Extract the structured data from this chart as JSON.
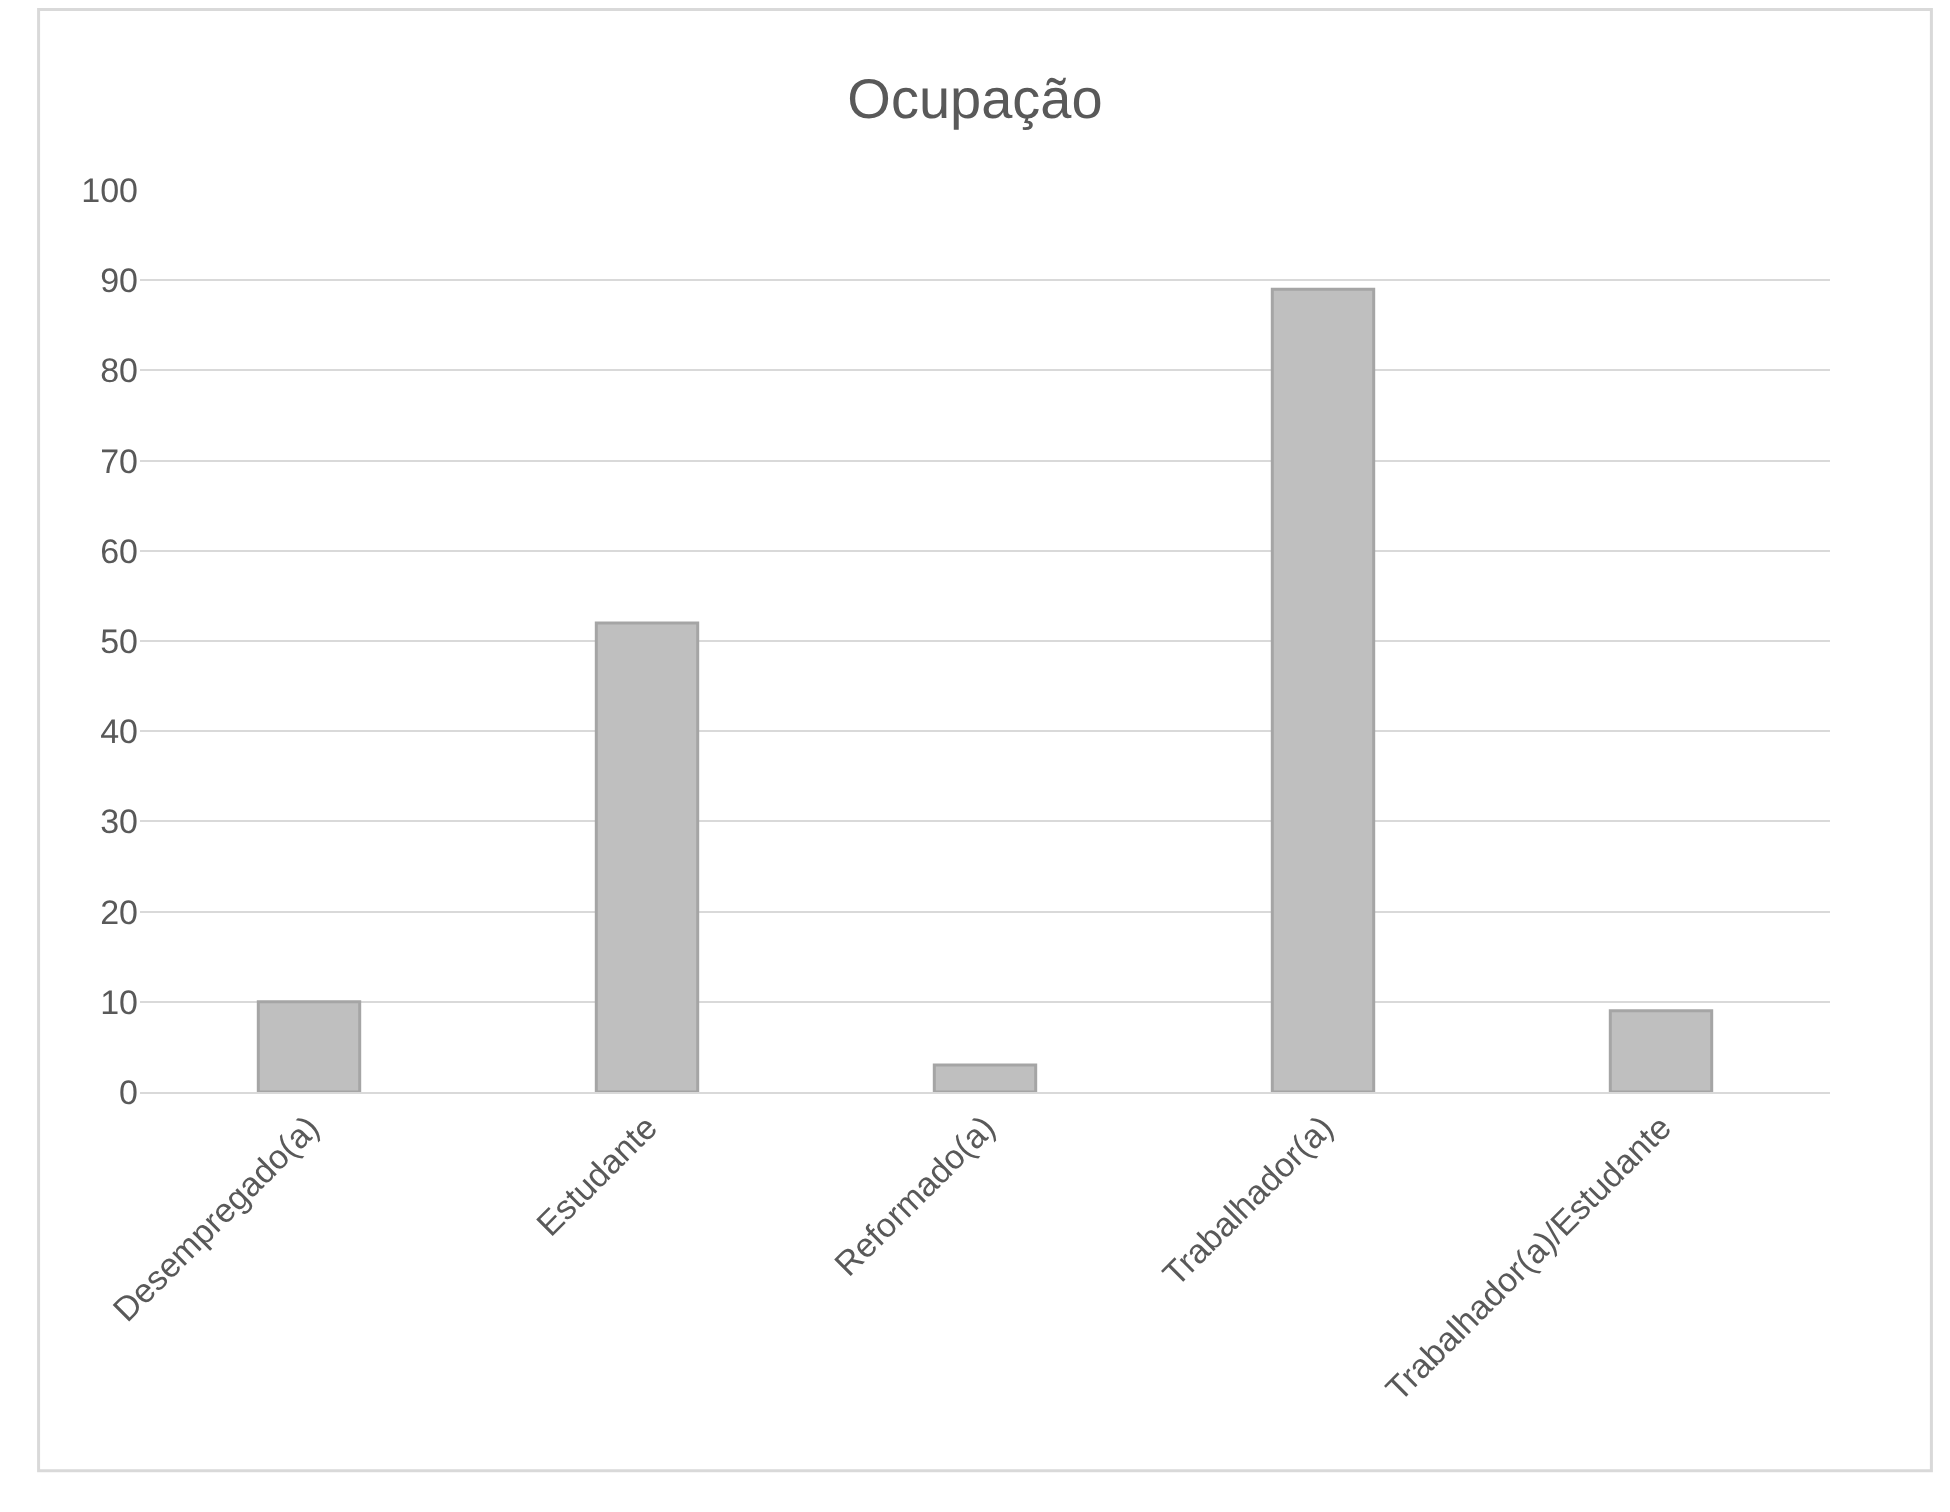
{
  "chart_data": {
    "type": "bar",
    "title": "Ocupação",
    "categories": [
      "Desempregado(a)",
      "Estudante",
      "Reformado(a)",
      "Trabalhador(a)",
      "Trabalhador(a)/Estudante"
    ],
    "values": [
      10,
      52,
      3,
      89,
      9
    ],
    "color": "#bfbfbf",
    "ylim": [
      0,
      100
    ],
    "yticks": [
      0,
      10,
      20,
      30,
      40,
      50,
      60,
      70,
      80,
      90,
      100
    ],
    "grid": "y",
    "legend": false
  }
}
